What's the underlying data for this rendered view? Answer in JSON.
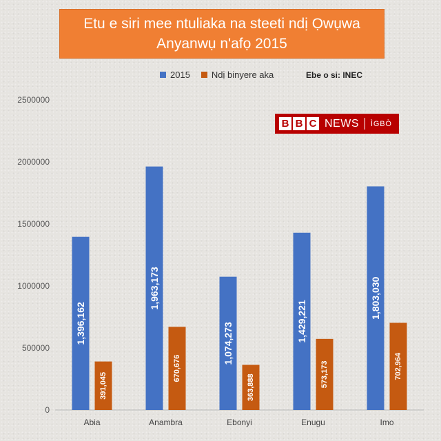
{
  "chart_data": {
    "type": "bar",
    "title_lines": [
      "Etu e siri mee ntuliaka na steeti ndị Ọwụwa",
      "Anyanwụ n'afọ 2015"
    ],
    "categories": [
      "Abia",
      "Anambra",
      "Ebonyi",
      "Enugu",
      "Imo"
    ],
    "series": [
      {
        "name": "2015",
        "color": "#4472c4",
        "values": [
          1396162,
          1963173,
          1074273,
          1429221,
          1803030
        ],
        "labels": [
          "1,396,162",
          "1,963,173",
          "1,074,273",
          "1,429,221",
          "1,803,030"
        ]
      },
      {
        "name": "Ndị binyere aka",
        "color": "#c55a11",
        "values": [
          391045,
          670676,
          363888,
          573173,
          702964
        ],
        "labels": [
          "391,045",
          "670,676",
          "363,888",
          "573,173",
          "702,964"
        ]
      }
    ],
    "y_ticks": [
      "0",
      "500000",
      "1000000",
      "1500000",
      "2000000",
      "2500000"
    ],
    "ylim": [
      0,
      2500000
    ],
    "grid": false,
    "legend_position": "top"
  },
  "source_label": "Ebe o si: INEC",
  "logo": {
    "blocks": [
      "B",
      "B",
      "C"
    ],
    "news": "NEWS",
    "language": "ÌGBÒ"
  }
}
